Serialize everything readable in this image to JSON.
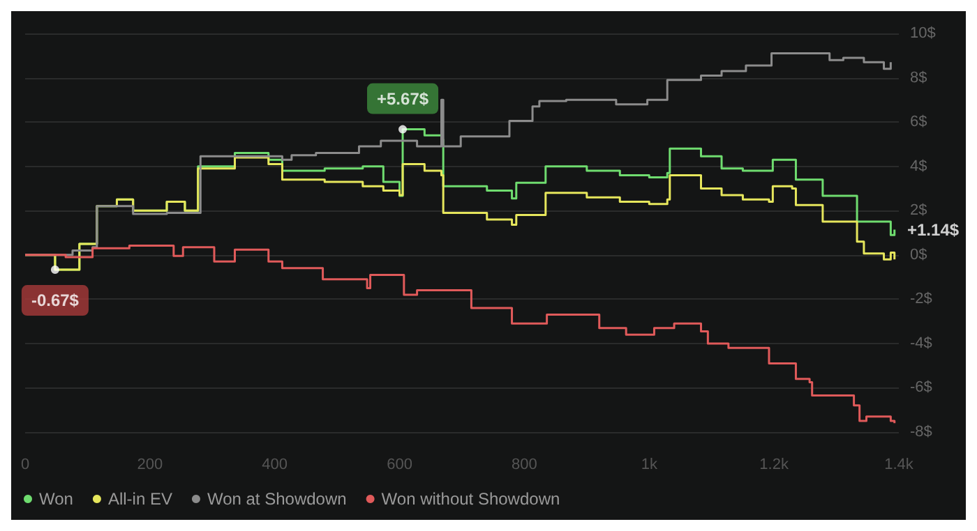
{
  "chart_data": {
    "type": "step",
    "xlim": [
      0,
      1400
    ],
    "xticks": [
      0,
      200,
      400,
      600,
      800,
      {
        "value": 1000,
        "label": "1k"
      },
      {
        "value": 1200,
        "label": "1.2k"
      },
      {
        "value": 1400,
        "label": "1.4k"
      }
    ],
    "ylim": [
      -8,
      10
    ],
    "yticks": [
      {
        "value": -8,
        "label": "-8$"
      },
      {
        "value": -6,
        "label": "-6$"
      },
      {
        "value": -4,
        "label": "-4$"
      },
      {
        "value": -2,
        "label": "-2$"
      },
      {
        "value": 0,
        "label": "0$"
      },
      {
        "value": 2,
        "label": "2$"
      },
      {
        "value": 4,
        "label": "4$"
      },
      {
        "value": 6,
        "label": "6$"
      },
      {
        "value": 8,
        "label": "8$"
      },
      {
        "value": 10,
        "label": "10$"
      }
    ],
    "grid": "y",
    "legend": "bottom left",
    "marker": "none",
    "line_style": "solid",
    "series": [
      {
        "name": "Won",
        "color": "#6fdc6f",
        "x": [
          0,
          30,
          48,
          87,
          115,
          147,
          173,
          227,
          256,
          277,
          336,
          390,
          412,
          480,
          541,
          574,
          600,
          605,
          640,
          667,
          670,
          740,
          780,
          787,
          834,
          900,
          953,
          1000,
          1029,
          1033,
          1083,
          1116,
          1150,
          1192,
          1198,
          1229,
          1235,
          1278,
          1333,
          1387,
          1393
        ],
        "values": [
          0,
          0,
          -0.67,
          0.5,
          2.2,
          2.5,
          2.0,
          2.4,
          2.0,
          4.0,
          4.6,
          4.3,
          3.8,
          3.9,
          4.0,
          3.3,
          2.67,
          5.67,
          5.4,
          5.2,
          3.1,
          2.9,
          2.55,
          3.26,
          4.0,
          3.8,
          3.6,
          3.5,
          3.7,
          4.8,
          4.45,
          3.9,
          3.8,
          3.8,
          4.3,
          4.3,
          3.4,
          2.67,
          1.5,
          0.9,
          1.14
        ]
      },
      {
        "name": "All-in EV",
        "color": "#e6e65c",
        "x": [
          0,
          30,
          48,
          87,
          115,
          147,
          173,
          227,
          256,
          277,
          336,
          390,
          412,
          480,
          541,
          574,
          600,
          605,
          640,
          667,
          670,
          740,
          780,
          787,
          834,
          900,
          953,
          1000,
          1029,
          1033,
          1083,
          1116,
          1150,
          1192,
          1198,
          1229,
          1235,
          1278,
          1333,
          1344,
          1376,
          1387,
          1393
        ],
        "values": [
          0,
          0,
          -0.67,
          0.5,
          2.2,
          2.5,
          2.0,
          2.4,
          2.0,
          3.9,
          4.4,
          4.1,
          3.4,
          3.3,
          3.1,
          2.9,
          2.7,
          4.1,
          3.8,
          3.6,
          1.9,
          1.6,
          1.36,
          1.8,
          2.8,
          2.6,
          2.4,
          2.3,
          2.5,
          3.6,
          3.0,
          2.7,
          2.5,
          2.4,
          3.1,
          3.0,
          2.25,
          1.5,
          0.6,
          0.06,
          -0.2,
          0.1,
          -0.2
        ]
      },
      {
        "name": "Won at Showdown",
        "color": "#8c8c8c",
        "x": [
          0,
          55,
          76,
          108,
          115,
          173,
          227,
          281,
          412,
          427,
          466,
          535,
          570,
          628,
          665,
          667,
          670,
          698,
          776,
          813,
          824,
          867,
          947,
          997,
          1029,
          1083,
          1116,
          1155,
          1196,
          1289,
          1311,
          1344,
          1376,
          1387
        ],
        "values": [
          0,
          0,
          0.2,
          0.35,
          2.2,
          1.85,
          1.9,
          4.45,
          4.3,
          4.5,
          4.6,
          4.9,
          5.15,
          4.9,
          4.9,
          7.0,
          4.9,
          5.35,
          6.05,
          6.7,
          6.95,
          7.0,
          6.8,
          7.0,
          7.9,
          8.1,
          8.3,
          8.55,
          9.1,
          8.8,
          8.9,
          8.7,
          8.4,
          8.7
        ]
      },
      {
        "name": "Won without Showdown",
        "color": "#e05a5a",
        "x": [
          0,
          65,
          108,
          167,
          238,
          253,
          303,
          336,
          390,
          412,
          477,
          548,
          553,
          607,
          628,
          715,
          780,
          836,
          920,
          963,
          1008,
          1040,
          1083,
          1094,
          1127,
          1192,
          1224,
          1235,
          1257,
          1261,
          1328,
          1337,
          1348,
          1387,
          1393
        ],
        "values": [
          0,
          -0.1,
          0.3,
          0.42,
          -0.05,
          0.35,
          -0.3,
          0.24,
          -0.3,
          -0.6,
          -1.1,
          -1.5,
          -0.9,
          -1.8,
          -1.6,
          -2.4,
          -3.1,
          -2.7,
          -3.3,
          -3.6,
          -3.3,
          -3.1,
          -3.45,
          -4.0,
          -4.2,
          -4.9,
          -4.9,
          -5.6,
          -5.75,
          -6.35,
          -6.8,
          -7.5,
          -7.3,
          -7.5,
          -7.6
        ]
      }
    ],
    "annotations": [
      {
        "text": "+5.67$",
        "x": 605,
        "y": 5.67
      },
      {
        "text": "-0.67$",
        "x": 48,
        "y": -0.67
      },
      {
        "text": "+1.14$",
        "x": 1400,
        "y": 1.14
      }
    ]
  }
}
